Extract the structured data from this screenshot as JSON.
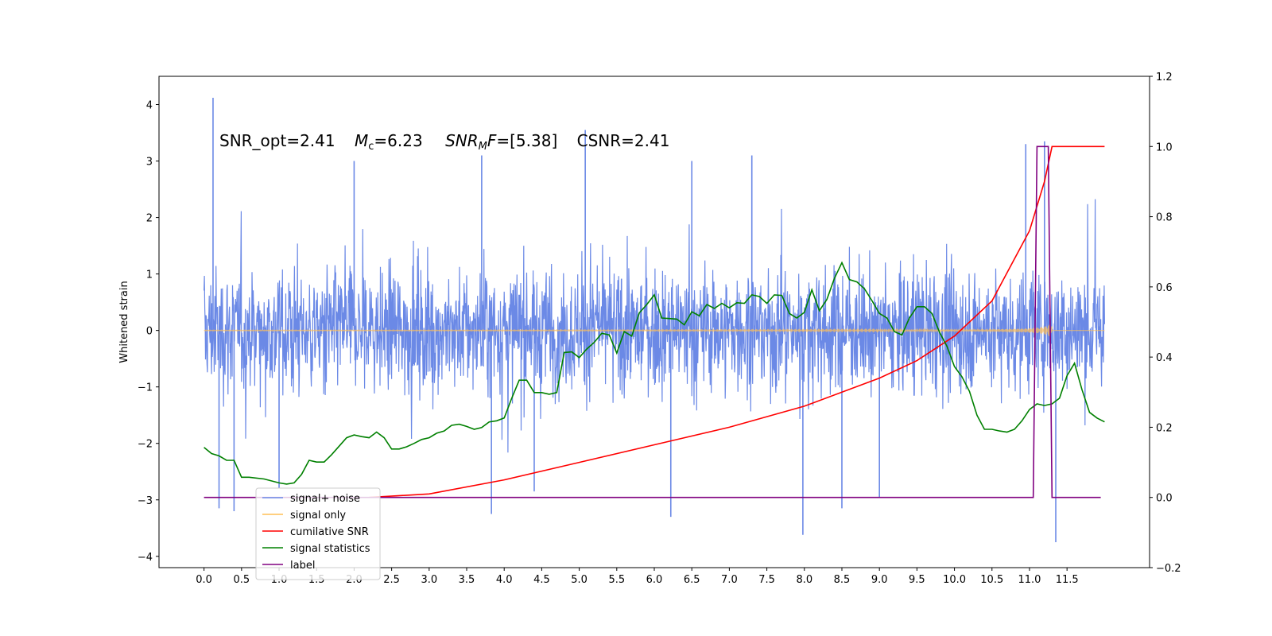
{
  "chart_data": {
    "type": "line",
    "annotation": {
      "snr_opt": "SNR_opt=2.41",
      "mc_symbol": "M",
      "mc_sub": "c",
      "mc_value": "=6.23",
      "snrmf_symbol": "SNR",
      "snrmf_sub": "M",
      "snrmf_F": "F",
      "snrmf_value": "=[5.38]",
      "csnr": "CSNR=2.41"
    },
    "ylabel_left": "Whitened strain",
    "xlim": [
      -0.6,
      12.6
    ],
    "ylim_left": [
      -4.2,
      4.5
    ],
    "ylim_right": [
      -0.2,
      1.2
    ],
    "xticks": [
      0.0,
      0.5,
      1.0,
      1.5,
      2.0,
      2.5,
      3.0,
      3.5,
      4.0,
      4.5,
      5.0,
      5.5,
      6.0,
      6.5,
      7.0,
      7.5,
      8.0,
      8.5,
      9.0,
      9.5,
      10.0,
      10.5,
      11.0,
      11.5
    ],
    "xtick_labels": [
      "0.0",
      "0.5",
      "1.0",
      "1.5",
      "2.0",
      "2.5",
      "3.0",
      "3.5",
      "4.0",
      "4.5",
      "5.0",
      "5.5",
      "6.0",
      "6.5",
      "7.0",
      "7.5",
      "8.0",
      "8.5",
      "9.0",
      "9.5",
      "10.0",
      "10.5",
      "11.0",
      "11.5"
    ],
    "yticks_left": [
      -4,
      -3,
      -2,
      -1,
      0,
      1,
      2,
      3,
      4
    ],
    "ytick_labels_left": [
      "−4",
      "−3",
      "−2",
      "−1",
      "0",
      "1",
      "2",
      "3",
      "4"
    ],
    "yticks_right": [
      -0.2,
      0.0,
      0.2,
      0.4,
      0.6,
      0.8,
      1.0,
      1.2
    ],
    "ytick_labels_right": [
      "−0.2",
      "0.0",
      "0.2",
      "0.4",
      "0.6",
      "0.8",
      "1.0",
      "1.2"
    ],
    "legend": {
      "placement": "lower-left",
      "entries": [
        {
          "label": "signal+ noise",
          "color": "#6b89e6"
        },
        {
          "label": "signal only",
          "color": "#ffbf55"
        },
        {
          "label": "cumilative SNR",
          "color": "#ff0000"
        },
        {
          "label": "signal statistics",
          "color": "#008000"
        },
        {
          "label": "label",
          "color": "#800080"
        }
      ]
    },
    "series": [
      {
        "name": "signal+ noise",
        "axis": "left",
        "color": "#6b89e6",
        "style": "noise",
        "x_range": [
          0.0,
          12.0
        ],
        "band": [
          -2.3,
          2.3
        ],
        "spikes": [
          [
            0.12,
            4.12
          ],
          [
            0.4,
            -3.2
          ],
          [
            0.2,
            -3.15
          ],
          [
            3.83,
            -3.25
          ],
          [
            5.08,
            3.55
          ],
          [
            6.22,
            -3.3
          ],
          [
            7.98,
            -3.62
          ],
          [
            8.5,
            -3.15
          ],
          [
            11.2,
            3.35
          ],
          [
            11.35,
            -3.75
          ],
          [
            9.0,
            -2.95
          ],
          [
            4.4,
            -2.85
          ],
          [
            2.0,
            3.0
          ],
          [
            10.95,
            3.3
          ],
          [
            7.3,
            3.1
          ],
          [
            1.0,
            -2.8
          ],
          [
            6.5,
            3.0
          ],
          [
            3.7,
            3.1
          ]
        ]
      },
      {
        "name": "signal only",
        "axis": "left",
        "color": "#ffbf55",
        "style": "chirp",
        "x_range": [
          0.0,
          12.0
        ],
        "merger": 11.3,
        "peak_amplitude": 0.15
      },
      {
        "name": "cumilative SNR",
        "axis": "right",
        "color": "#ff0000",
        "x": [
          2.2,
          3.0,
          4.0,
          5.0,
          6.0,
          7.0,
          8.0,
          9.0,
          9.5,
          10.0,
          10.5,
          11.0,
          11.2,
          11.3,
          12.0
        ],
        "y": [
          0.0,
          0.01,
          0.05,
          0.1,
          0.15,
          0.2,
          0.26,
          0.34,
          0.39,
          0.46,
          0.56,
          0.76,
          0.9,
          1.0,
          1.0
        ]
      },
      {
        "name": "signal statistics",
        "axis": "left",
        "color": "#008000",
        "x": [
          0.0,
          0.1,
          0.2,
          0.3,
          0.4,
          0.5,
          0.6,
          0.8,
          1.0,
          1.1,
          1.2,
          1.3,
          1.4,
          1.5,
          1.6,
          1.7,
          1.8,
          1.9,
          2.0,
          2.1,
          2.2,
          2.3,
          2.4,
          2.5,
          2.6,
          2.7,
          2.8,
          2.9,
          3.0,
          3.1,
          3.2,
          3.3,
          3.4,
          3.5,
          3.6,
          3.7,
          3.8,
          3.9,
          4.0,
          4.1,
          4.2,
          4.3,
          4.4,
          4.5,
          4.6,
          4.7,
          4.8,
          4.9,
          5.0,
          5.1,
          5.2,
          5.3,
          5.4,
          5.5,
          5.6,
          5.7,
          5.8,
          5.9,
          6.0,
          6.1,
          6.2,
          6.3,
          6.4,
          6.5,
          6.6,
          6.7,
          6.8,
          6.9,
          7.0,
          7.1,
          7.2,
          7.3,
          7.4,
          7.5,
          7.6,
          7.7,
          7.8,
          7.9,
          8.0,
          8.1,
          8.2,
          8.3,
          8.4,
          8.5,
          8.6,
          8.7,
          8.8,
          8.9,
          9.0,
          9.1,
          9.2,
          9.3,
          9.4,
          9.5,
          9.6,
          9.7,
          9.8,
          9.9,
          10.0,
          10.1,
          10.2,
          10.3,
          10.4,
          10.5,
          10.6,
          10.7,
          10.8,
          10.9,
          11.0,
          11.1,
          11.2,
          11.3,
          11.4,
          11.5,
          11.6,
          11.7,
          11.8,
          11.9,
          12.0
        ],
        "y": [
          -2.07,
          -2.18,
          -2.22,
          -2.3,
          -2.3,
          -2.6,
          -2.6,
          -2.63,
          -2.7,
          -2.72,
          -2.7,
          -2.55,
          -2.3,
          -2.33,
          -2.33,
          -2.2,
          -2.05,
          -1.9,
          -1.85,
          -1.88,
          -1.9,
          -1.8,
          -1.9,
          -2.1,
          -2.1,
          -2.06,
          -2.0,
          -1.93,
          -1.9,
          -1.82,
          -1.78,
          -1.68,
          -1.66,
          -1.7,
          -1.75,
          -1.72,
          -1.62,
          -1.6,
          -1.55,
          -1.2,
          -0.88,
          -0.88,
          -1.1,
          -1.1,
          -1.13,
          -1.1,
          -0.39,
          -0.38,
          -0.48,
          -0.33,
          -0.21,
          -0.05,
          -0.08,
          -0.4,
          -0.02,
          -0.1,
          0.31,
          0.46,
          0.63,
          0.22,
          0.21,
          0.2,
          0.1,
          0.33,
          0.26,
          0.46,
          0.39,
          0.48,
          0.4,
          0.49,
          0.48,
          0.63,
          0.6,
          0.48,
          0.63,
          0.62,
          0.3,
          0.22,
          0.32,
          0.72,
          0.35,
          0.55,
          0.92,
          1.2,
          0.9,
          0.86,
          0.74,
          0.53,
          0.3,
          0.22,
          -0.02,
          -0.08,
          0.22,
          0.42,
          0.42,
          0.3,
          -0.03,
          -0.28,
          -0.64,
          -0.82,
          -1.08,
          -1.5,
          -1.75,
          -1.75,
          -1.78,
          -1.8,
          -1.75,
          -1.6,
          -1.4,
          -1.3,
          -1.33,
          -1.3,
          -1.2,
          -0.8,
          -0.58,
          -1.05,
          -1.45,
          -1.55,
          -1.62
        ]
      },
      {
        "name": "label",
        "axis": "right",
        "color": "#800080",
        "x": [
          0.0,
          11.05,
          11.1,
          11.25,
          11.3,
          11.95
        ],
        "y": [
          0.0,
          0.0,
          1.0,
          1.0,
          0.0,
          0.0
        ]
      }
    ],
    "grid": false
  }
}
